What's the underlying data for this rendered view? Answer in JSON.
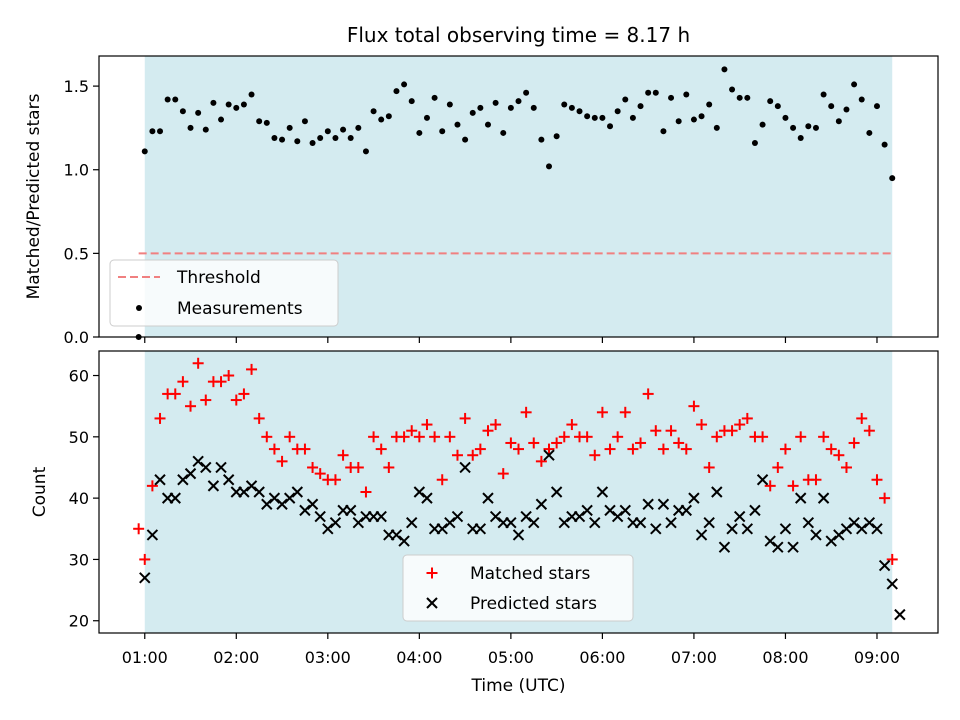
{
  "colors": {
    "observing_band": "#d4ebf0",
    "threshold": "#f08080",
    "measurements": "#000000",
    "matched": "#ff0000",
    "predicted": "#000000"
  },
  "x_ticks": [
    "01:00",
    "02:00",
    "03:00",
    "04:00",
    "05:00",
    "06:00",
    "07:00",
    "08:00",
    "09:00"
  ],
  "x_label": "Time (UTC)",
  "chart_data": [
    {
      "type": "scatter",
      "title": "Flux total observing time = 8.17 h",
      "xlabel": "",
      "ylabel": "Matched/Predicted stars",
      "xlim": [
        "00:30",
        "09:40"
      ],
      "ylim": [
        0,
        1.68
      ],
      "y_ticks": [
        "0.0",
        "0.5",
        "1.0",
        "1.5"
      ],
      "observing_window": [
        "01:00",
        "09:10"
      ],
      "grid": false,
      "legend_position": "lower-left",
      "threshold": {
        "name": "Threshold",
        "value": 0.5,
        "style": "dashed",
        "x_start": "00:56",
        "x_end": "09:10"
      },
      "series": [
        {
          "name": "Measurements",
          "marker": "dot",
          "x": [
            "00:56",
            "01:00",
            "01:05",
            "01:10",
            "01:15",
            "01:20",
            "01:25",
            "01:30",
            "01:35",
            "01:40",
            "01:45",
            "01:50",
            "01:55",
            "02:00",
            "02:05",
            "02:10",
            "02:15",
            "02:20",
            "02:25",
            "02:30",
            "02:35",
            "02:40",
            "02:45",
            "02:50",
            "02:55",
            "03:00",
            "03:05",
            "03:10",
            "03:15",
            "03:20",
            "03:25",
            "03:30",
            "03:35",
            "03:40",
            "03:45",
            "03:50",
            "03:55",
            "04:00",
            "04:05",
            "04:10",
            "04:15",
            "04:20",
            "04:25",
            "04:30",
            "04:35",
            "04:40",
            "04:45",
            "04:50",
            "04:55",
            "05:00",
            "05:05",
            "05:10",
            "05:15",
            "05:20",
            "05:25",
            "05:30",
            "05:35",
            "05:40",
            "05:45",
            "05:50",
            "05:55",
            "06:00",
            "06:05",
            "06:10",
            "06:15",
            "06:20",
            "06:25",
            "06:30",
            "06:35",
            "06:40",
            "06:45",
            "06:50",
            "06:55",
            "07:00",
            "07:05",
            "07:10",
            "07:15",
            "07:20",
            "07:25",
            "07:30",
            "07:35",
            "07:40",
            "07:45",
            "07:50",
            "07:55",
            "08:00",
            "08:05",
            "08:10",
            "08:15",
            "08:20",
            "08:25",
            "08:30",
            "08:35",
            "08:40",
            "08:45",
            "08:50",
            "08:55",
            "09:00",
            "09:05",
            "09:10"
          ],
          "y": [
            0.0,
            1.11,
            1.23,
            1.23,
            1.42,
            1.42,
            1.35,
            1.25,
            1.34,
            1.24,
            1.4,
            1.3,
            1.39,
            1.37,
            1.39,
            1.45,
            1.29,
            1.28,
            1.19,
            1.18,
            1.25,
            1.17,
            1.29,
            1.16,
            1.19,
            1.23,
            1.19,
            1.24,
            1.19,
            1.25,
            1.11,
            1.35,
            1.3,
            1.32,
            1.47,
            1.51,
            1.41,
            1.22,
            1.31,
            1.43,
            1.23,
            1.39,
            1.27,
            1.18,
            1.34,
            1.37,
            1.27,
            1.4,
            1.22,
            1.37,
            1.41,
            1.46,
            1.37,
            1.18,
            1.02,
            1.2,
            1.39,
            1.37,
            1.35,
            1.32,
            1.31,
            1.31,
            1.26,
            1.35,
            1.42,
            1.31,
            1.38,
            1.46,
            1.46,
            1.23,
            1.43,
            1.29,
            1.45,
            1.3,
            1.32,
            1.39,
            1.25,
            1.6,
            1.48,
            1.43,
            1.43,
            1.16,
            1.27,
            1.41,
            1.38,
            1.31,
            1.25,
            1.19,
            1.26,
            1.25,
            1.45,
            1.38,
            1.29,
            1.36,
            1.51,
            1.42,
            1.22,
            1.38,
            1.15,
            0.95
          ]
        }
      ]
    },
    {
      "type": "scatter",
      "title": "",
      "xlabel": "Time (UTC)",
      "ylabel": "Count",
      "xlim": [
        "00:30",
        "09:40"
      ],
      "ylim": [
        18,
        64
      ],
      "y_ticks": [
        "20",
        "30",
        "40",
        "50",
        "60"
      ],
      "observing_window": [
        "01:00",
        "09:10"
      ],
      "grid": false,
      "legend_position": "lower-center",
      "series": [
        {
          "name": "Matched stars",
          "marker": "plus",
          "x": [
            "00:56",
            "01:00",
            "01:05",
            "01:10",
            "01:15",
            "01:20",
            "01:25",
            "01:30",
            "01:35",
            "01:40",
            "01:45",
            "01:50",
            "01:55",
            "02:00",
            "02:05",
            "02:10",
            "02:15",
            "02:20",
            "02:25",
            "02:30",
            "02:35",
            "02:40",
            "02:45",
            "02:50",
            "02:55",
            "03:00",
            "03:05",
            "03:10",
            "03:15",
            "03:20",
            "03:25",
            "03:30",
            "03:35",
            "03:40",
            "03:45",
            "03:50",
            "03:55",
            "04:00",
            "04:05",
            "04:10",
            "04:15",
            "04:20",
            "04:25",
            "04:30",
            "04:35",
            "04:40",
            "04:45",
            "04:50",
            "04:55",
            "05:00",
            "05:05",
            "05:10",
            "05:15",
            "05:20",
            "05:25",
            "05:30",
            "05:35",
            "05:40",
            "05:45",
            "05:50",
            "05:55",
            "06:00",
            "06:05",
            "06:10",
            "06:15",
            "06:20",
            "06:25",
            "06:30",
            "06:35",
            "06:40",
            "06:45",
            "06:50",
            "06:55",
            "07:00",
            "07:05",
            "07:10",
            "07:15",
            "07:20",
            "07:25",
            "07:30",
            "07:35",
            "07:40",
            "07:45",
            "07:50",
            "07:55",
            "08:00",
            "08:05",
            "08:10",
            "08:15",
            "08:20",
            "08:25",
            "08:30",
            "08:35",
            "08:40",
            "08:45",
            "08:50",
            "08:55",
            "09:00",
            "09:05",
            "09:10"
          ],
          "y": [
            35,
            30,
            42,
            53,
            57,
            57,
            59,
            55,
            62,
            56,
            59,
            59,
            60,
            56,
            57,
            61,
            53,
            50,
            48,
            46,
            50,
            48,
            48,
            45,
            44,
            43,
            43,
            47,
            45,
            45,
            41,
            50,
            48,
            45,
            50,
            50,
            51,
            50,
            52,
            50,
            43,
            50,
            47,
            53,
            47,
            48,
            51,
            52,
            44,
            49,
            48,
            54,
            49,
            46,
            48,
            49,
            50,
            52,
            50,
            50,
            47,
            54,
            48,
            50,
            54,
            48,
            49,
            57,
            51,
            48,
            51,
            49,
            48,
            55,
            52,
            45,
            50,
            51,
            51,
            52,
            53,
            50,
            50,
            42,
            45,
            48,
            42,
            50,
            43,
            43,
            50,
            48,
            47,
            45,
            49,
            53,
            51,
            43,
            40,
            30
          ]
        },
        {
          "name": "Predicted stars",
          "marker": "x",
          "x": [
            "01:00",
            "01:05",
            "01:10",
            "01:15",
            "01:20",
            "01:25",
            "01:30",
            "01:35",
            "01:40",
            "01:45",
            "01:50",
            "01:55",
            "02:00",
            "02:05",
            "02:10",
            "02:15",
            "02:20",
            "02:25",
            "02:30",
            "02:35",
            "02:40",
            "02:45",
            "02:50",
            "02:55",
            "03:00",
            "03:05",
            "03:10",
            "03:15",
            "03:20",
            "03:25",
            "03:30",
            "03:35",
            "03:40",
            "03:45",
            "03:50",
            "03:55",
            "04:00",
            "04:05",
            "04:10",
            "04:15",
            "04:20",
            "04:25",
            "04:30",
            "04:35",
            "04:40",
            "04:45",
            "04:50",
            "04:55",
            "05:00",
            "05:05",
            "05:10",
            "05:15",
            "05:20",
            "05:25",
            "05:30",
            "05:35",
            "05:40",
            "05:45",
            "05:50",
            "05:55",
            "06:00",
            "06:05",
            "06:10",
            "06:15",
            "06:20",
            "06:25",
            "06:30",
            "06:35",
            "06:40",
            "06:45",
            "06:50",
            "06:55",
            "07:00",
            "07:05",
            "07:10",
            "07:15",
            "07:20",
            "07:25",
            "07:30",
            "07:35",
            "07:40",
            "07:45",
            "07:50",
            "07:55",
            "08:00",
            "08:05",
            "08:10",
            "08:15",
            "08:20",
            "08:25",
            "08:30",
            "08:35",
            "08:40",
            "08:45",
            "08:50",
            "08:55",
            "09:00",
            "09:05",
            "09:10",
            "09:15"
          ],
          "y": [
            27,
            34,
            43,
            40,
            40,
            43,
            44,
            46,
            45,
            42,
            45,
            43,
            41,
            41,
            42,
            41,
            39,
            40,
            39,
            40,
            41,
            38,
            39,
            37,
            35,
            36,
            38,
            38,
            36,
            37,
            37,
            37,
            34,
            34,
            33,
            36,
            41,
            40,
            35,
            35,
            36,
            37,
            45,
            35,
            35,
            40,
            37,
            36,
            36,
            34,
            37,
            36,
            39,
            47,
            41,
            36,
            37,
            37,
            38,
            36,
            41,
            38,
            37,
            38,
            36,
            36,
            39,
            35,
            39,
            36,
            38,
            38,
            40,
            34,
            36,
            41,
            32,
            35,
            37,
            35,
            38,
            43,
            33,
            32,
            35,
            32,
            40,
            36,
            34,
            40,
            33,
            34,
            35,
            36,
            35,
            36,
            35,
            29,
            26,
            21
          ]
        }
      ]
    }
  ]
}
